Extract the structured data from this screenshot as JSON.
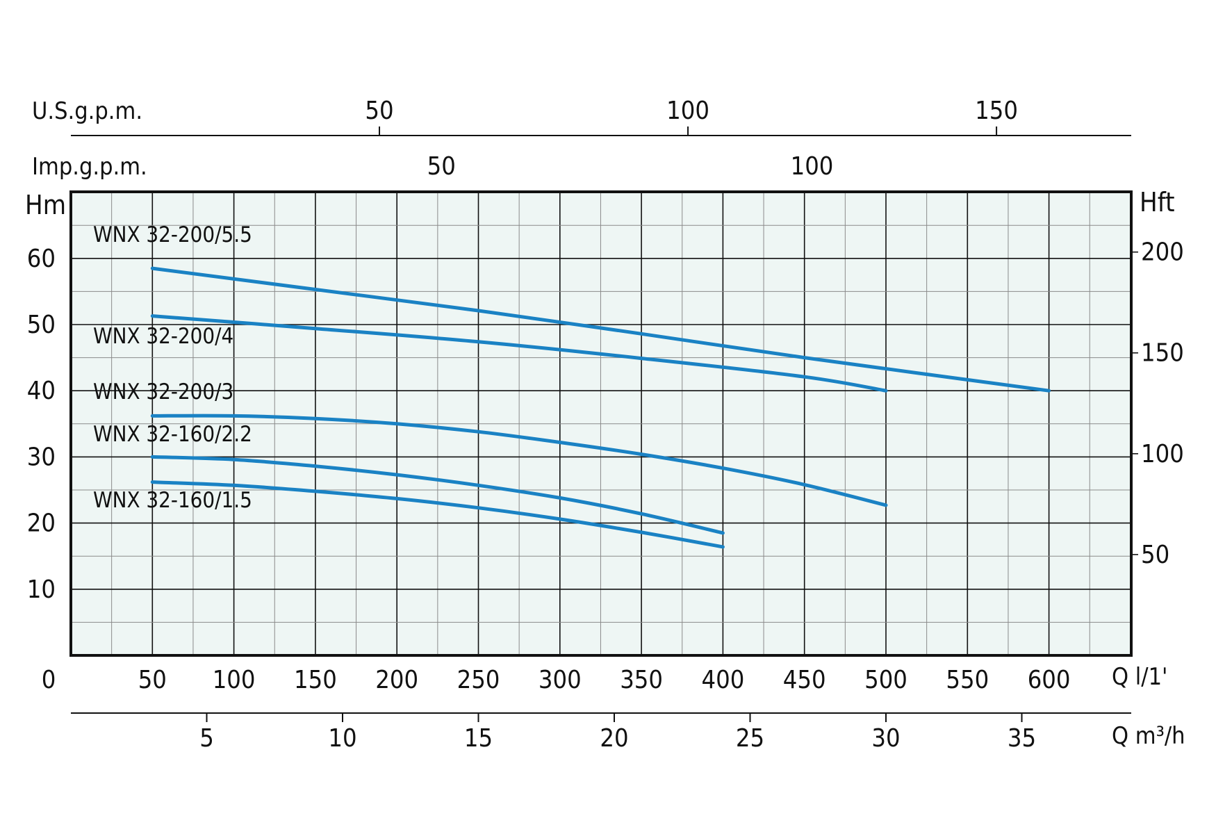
{
  "chart_data": {
    "type": "line",
    "x_unit_label": "Q l/1'",
    "x_ticks": [
      0,
      50,
      100,
      150,
      200,
      250,
      300,
      350,
      400,
      450,
      500,
      550,
      600
    ],
    "xlim": [
      0,
      650
    ],
    "y_unit_label": "Hm",
    "y_ticks": [
      10,
      20,
      30,
      40,
      50,
      60
    ],
    "ylim": [
      0,
      70
    ],
    "right_axis": {
      "label": "Hft",
      "ticks": [
        50,
        100,
        150,
        200
      ]
    },
    "bottom_axis_2": {
      "label": "Q m³/h",
      "ticks": [
        5,
        10,
        15,
        20,
        25,
        30,
        35
      ]
    },
    "top_axis_usgpm": {
      "label": "U.S.g.p.m.",
      "ticks": [
        50,
        100,
        150
      ]
    },
    "top_axis_impgpm": {
      "label": "Imp.g.p.m.",
      "ticks": [
        50,
        100
      ]
    },
    "grid": true,
    "line_color": "#1a82c4",
    "plot_background": "#eef6f4",
    "series": [
      {
        "name": "WNX 32-200/5.5",
        "x": [
          50,
          150,
          250,
          350,
          450,
          600
        ],
        "y": [
          58.5,
          55.3,
          52.1,
          48.6,
          45.0,
          40.0
        ]
      },
      {
        "name": "WNX 32-200/4",
        "x": [
          50,
          150,
          250,
          350,
          450,
          500
        ],
        "y": [
          51.3,
          49.4,
          47.4,
          44.9,
          42.1,
          40.0
        ]
      },
      {
        "name": "WNX 32-200/3",
        "x": [
          50,
          100,
          150,
          200,
          250,
          300,
          350,
          400,
          450,
          500
        ],
        "y": [
          36.2,
          36.2,
          35.8,
          35.0,
          33.8,
          32.2,
          30.4,
          28.3,
          25.8,
          22.7
        ]
      },
      {
        "name": "WNX 32-160/2.2",
        "x": [
          50,
          100,
          150,
          200,
          250,
          300,
          350,
          400
        ],
        "y": [
          30.0,
          29.6,
          28.6,
          27.3,
          25.7,
          23.8,
          21.4,
          18.5
        ]
      },
      {
        "name": "WNX 32-160/1.5",
        "x": [
          50,
          100,
          150,
          200,
          250,
          300,
          350,
          400
        ],
        "y": [
          26.2,
          25.7,
          24.8,
          23.7,
          22.3,
          20.6,
          18.6,
          16.4
        ]
      }
    ]
  }
}
